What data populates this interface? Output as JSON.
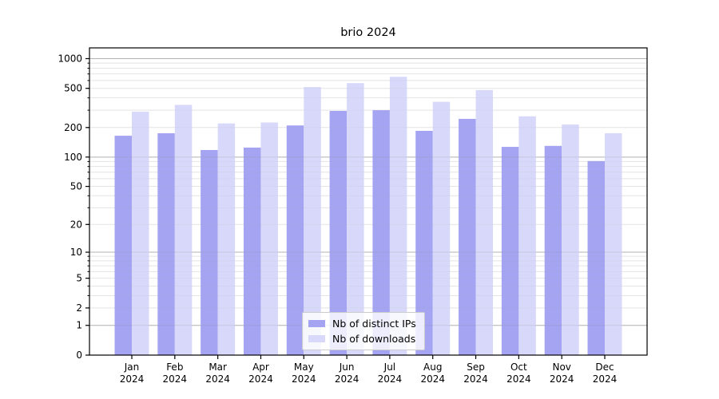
{
  "chart_data": {
    "type": "bar",
    "title": "brio 2024",
    "year": "2024",
    "categories": [
      "Jan",
      "Feb",
      "Mar",
      "Apr",
      "May",
      "Jun",
      "Jul",
      "Aug",
      "Sep",
      "Oct",
      "Nov",
      "Dec"
    ],
    "series": [
      {
        "name": "Nb of distinct IPs",
        "color": "#a4a4f2",
        "values": [
          165,
          175,
          118,
          125,
          210,
          295,
          300,
          185,
          245,
          127,
          130,
          91
        ]
      },
      {
        "name": "Nb of downloads",
        "color": "#d8d9fa",
        "values": [
          290,
          340,
          220,
          225,
          515,
          565,
          655,
          365,
          480,
          260,
          215,
          175
        ]
      }
    ],
    "y_scale": "log1p",
    "ylim": [
      0,
      1285
    ],
    "y_ticks": [
      0,
      1,
      2,
      5,
      10,
      20,
      50,
      100,
      200,
      500,
      1000
    ],
    "grid": {
      "visible": true,
      "major_values": [
        1,
        10,
        100,
        1000
      ],
      "major_color": "#bfbfbf",
      "minor_color": "#ececec"
    },
    "legend": {
      "position": "bottom-center"
    },
    "axis_color": "#000000",
    "xlabel": "",
    "ylabel": ""
  }
}
